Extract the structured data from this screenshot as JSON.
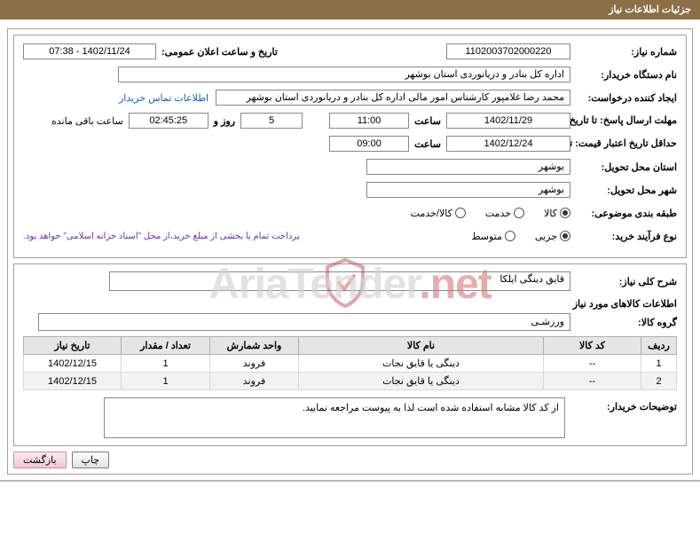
{
  "header": {
    "title": "جزئیات اطلاعات نیاز"
  },
  "fields": {
    "need_no_label": "شماره نیاز:",
    "need_no": "1102003702000220",
    "announce_label": "تاریخ و ساعت اعلان عمومی:",
    "announce_value": "1402/11/24 - 07:38",
    "buyer_org_label": "نام دستگاه خریدار:",
    "buyer_org": "اداره کل بنادر و دریانوردی استان بوشهر",
    "requester_label": "ایجاد کننده درخواست:",
    "requester": "محمد رضا غلامپور کارشناس امور مالی اداره کل بنادر و دریانوردی استان بوشهر",
    "contact_link": "اطلاعات تماس خریدار",
    "deadline_label": "مهلت ارسال پاسخ: تا تاریخ:",
    "deadline_date": "1402/11/29",
    "hour_label": "ساعت",
    "deadline_hour": "11:00",
    "days_count": "5",
    "days_and": "روز و",
    "countdown": "02:45:25",
    "remaining": "ساعت باقی مانده",
    "validity_label": "حداقل تاریخ اعتبار قیمت: تا تاریخ:",
    "validity_date": "1402/12/24",
    "validity_hour": "09:00",
    "province_label": "استان محل تحویل:",
    "province": "بوشهر",
    "city_label": "شهر محل تحویل:",
    "city": "بوشهر",
    "category_label": "طبقه بندی موضوعی:",
    "cat_opts": {
      "goods": "کالا",
      "service": "خدمت",
      "goods_service": "کالا/خدمت"
    },
    "process_label": "نوع فرآیند خرید:",
    "proc_opts": {
      "partial": "جزیی",
      "medium": "متوسط"
    },
    "payment_note": "پرداخت تمام یا بخشی از مبلغ خرید،از محل \"اسناد خزانه اسلامی\" خواهد بود."
  },
  "desc": {
    "title_label": "شرح کلی نیاز:",
    "title_value": "قایق دینگی ایلکا",
    "goods_info_label": "اطلاعات کالاهای مورد نیاز",
    "group_label": "گروه کالا:",
    "group_value": "ورزشـی"
  },
  "table": {
    "columns": [
      "ردیف",
      "کد کالا",
      "نام کالا",
      "واحد شمارش",
      "تعداد / مقدار",
      "تاریخ نیاز"
    ],
    "rows": [
      [
        "1",
        "--",
        "دینگی یا قایق نجات",
        "فروند",
        "1",
        "1402/12/15"
      ],
      [
        "2",
        "--",
        "دینگی یا قایق نجات",
        "فروند",
        "1",
        "1402/12/15"
      ]
    ],
    "col_widths": [
      "40px",
      "110px",
      "auto",
      "100px",
      "100px",
      "110px"
    ]
  },
  "buyer_note": {
    "label": "توضیحات خریدار:",
    "text": "از کد کالا مشابه استفاده شده است لذا به پیوست مراجعه نمایید."
  },
  "buttons": {
    "print": "چاپ",
    "back": "بازگشت"
  },
  "watermark": {
    "part1": "AriaTender",
    "part2": ".net"
  }
}
